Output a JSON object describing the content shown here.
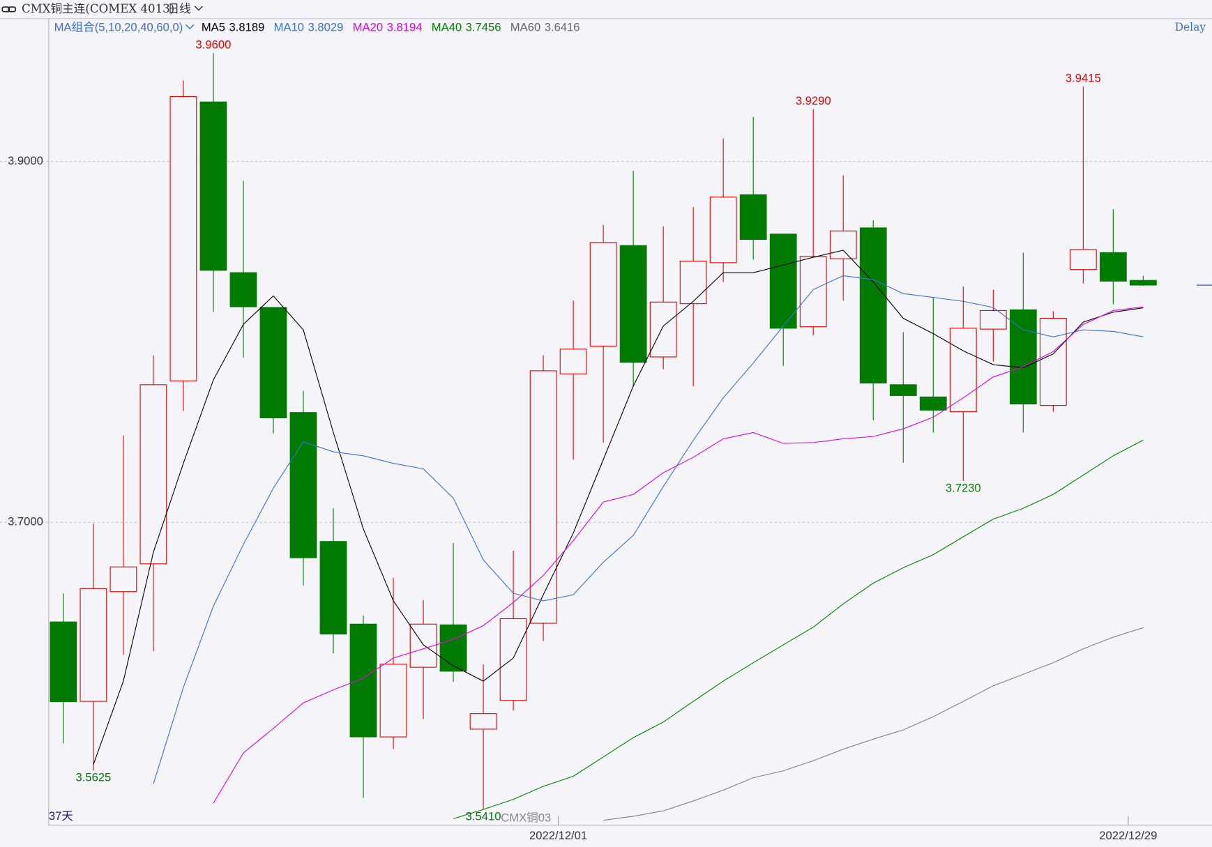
{
  "header": {
    "title": "CMX铜主连(COMEX 4013)",
    "period": "日线",
    "status": "Delay"
  },
  "chart_data": {
    "type": "candlestick",
    "ma_group_label": "MA组合(5,10,20,40,60,0)",
    "count_label": "37天",
    "watermark": "CMX铜03",
    "up_color": "#e60000",
    "down_color": "#007a00",
    "categories": [
      null,
      null,
      null,
      null,
      null,
      null,
      null,
      null,
      null,
      null,
      null,
      null,
      null,
      null,
      null,
      null,
      null,
      "2022/12/01",
      null,
      null,
      null,
      null,
      null,
      null,
      null,
      null,
      null,
      null,
      null,
      null,
      null,
      null,
      null,
      null,
      null,
      null,
      "2022/12/29"
    ],
    "open": [
      3.6448,
      3.6008,
      3.6616,
      3.677,
      3.7784,
      3.933,
      3.8384,
      3.8191,
      3.7609,
      3.6894,
      3.6436,
      3.5811,
      3.6197,
      3.6432,
      3.5854,
      3.6013,
      3.6441,
      3.7823,
      3.7977,
      3.8534,
      3.7917,
      3.8212,
      3.8439,
      3.8816,
      3.8598,
      3.8084,
      3.8461,
      3.8632,
      3.7763,
      3.7695,
      3.7613,
      3.8071,
      3.8178,
      3.7648,
      3.8401,
      3.8495,
      3.8341
    ],
    "high": [
      3.6606,
      3.6993,
      3.7481,
      3.7926,
      3.9449,
      3.96,
      3.8893,
      3.8191,
      3.7729,
      3.7078,
      3.6483,
      3.6693,
      3.6569,
      3.6886,
      3.6214,
      3.6843,
      3.7926,
      3.823,
      3.8649,
      3.8949,
      3.864,
      3.8747,
      3.9128,
      3.9248,
      3.8598,
      3.929,
      3.8923,
      3.8675,
      3.8054,
      3.8247,
      3.8307,
      3.829,
      3.8495,
      3.817,
      3.9415,
      3.8735,
      3.8367
    ],
    "low": [
      3.5775,
      3.5625,
      3.6265,
      3.6287,
      3.7618,
      3.8165,
      3.7913,
      3.7493,
      3.665,
      3.6274,
      3.5473,
      3.5743,
      3.591,
      3.6115,
      3.541,
      3.5957,
      3.6342,
      3.7348,
      3.7442,
      3.7754,
      3.7849,
      3.7754,
      3.8332,
      3.8456,
      3.7866,
      3.8037,
      3.823,
      3.7566,
      3.7331,
      3.7498,
      3.723,
      3.7891,
      3.7498,
      3.7613,
      3.8324,
      3.8208,
      3.8311
    ],
    "close": [
      3.6006,
      3.6633,
      3.6753,
      3.7763,
      3.936,
      3.8397,
      3.8195,
      3.7579,
      3.6804,
      3.6381,
      3.5811,
      3.6214,
      3.6436,
      3.6175,
      3.594,
      3.6466,
      3.784,
      3.796,
      3.8551,
      3.7887,
      3.8221,
      3.8448,
      3.8803,
      3.8568,
      3.8076,
      3.8474,
      3.8615,
      3.7772,
      3.7703,
      3.7622,
      3.8076,
      3.8174,
      3.7656,
      3.8131,
      3.8512,
      3.8337,
      3.8315
    ],
    "series": [
      {
        "name": "MA5",
        "color": "#000000",
        "values": [
          null,
          3.5657,
          3.612,
          3.6834,
          3.7327,
          3.7789,
          3.8097,
          3.8255,
          3.8067,
          3.7498,
          3.6963,
          3.6565,
          3.6321,
          3.6205,
          3.612,
          3.6248,
          3.6599,
          3.6941,
          3.7348,
          3.7755,
          3.8088,
          3.8225,
          3.8384,
          3.8384,
          3.8426,
          3.8469,
          3.8508,
          3.8332,
          3.8131,
          3.8046,
          3.7951,
          3.7874,
          3.7857,
          3.7934,
          3.811,
          3.8165,
          3.8189
        ]
      },
      {
        "name": "MA10",
        "color": "#3a6fd8",
        "values": [
          null,
          null,
          null,
          3.555,
          3.6085,
          3.6535,
          3.6877,
          3.719,
          3.7446,
          3.7391,
          3.7369,
          3.7327,
          3.7297,
          3.7134,
          3.6792,
          3.6607,
          3.6565,
          3.6599,
          3.6779,
          3.6928,
          3.7198,
          3.7455,
          3.769,
          3.7883,
          3.8088,
          3.829,
          3.8367,
          3.8345,
          3.8268,
          3.8247,
          3.8225,
          3.8191,
          3.8067,
          3.8028,
          3.8067,
          3.8058,
          3.8029
        ]
      },
      {
        "name": "MA20",
        "color": "#e600e6",
        "values": [
          null,
          null,
          null,
          null,
          null,
          3.5443,
          3.5722,
          3.5858,
          3.6,
          3.6072,
          3.6137,
          3.6248,
          3.6299,
          3.6351,
          3.6428,
          3.6556,
          3.6706,
          3.6899,
          3.7113,
          3.7155,
          3.7275,
          3.7361,
          3.7463,
          3.7498,
          3.7438,
          3.7442,
          3.7463,
          3.7476,
          3.7519,
          3.7583,
          3.769,
          3.7806,
          3.7862,
          3.7947,
          3.8097,
          3.8174,
          3.8194
        ]
      },
      {
        "name": "MA40",
        "color": "#008000",
        "values": [
          null,
          null,
          null,
          null,
          null,
          null,
          null,
          null,
          null,
          null,
          null,
          null,
          null,
          3.5358,
          3.5409,
          3.5465,
          3.5537,
          3.5593,
          3.57,
          3.5807,
          3.5893,
          3.6008,
          3.612,
          3.6222,
          3.6321,
          3.6419,
          3.6548,
          3.6663,
          3.6749,
          3.6821,
          3.692,
          3.7018,
          3.7078,
          3.7155,
          3.7262,
          3.7369,
          3.7456
        ]
      },
      {
        "name": "MA60",
        "color": "#808080",
        "values": [
          null,
          null,
          null,
          null,
          null,
          null,
          null,
          null,
          null,
          null,
          null,
          null,
          null,
          null,
          null,
          null,
          null,
          null,
          3.5349,
          3.5371,
          3.5401,
          3.5456,
          3.5516,
          3.5585,
          3.5623,
          3.5679,
          3.5743,
          3.5799,
          3.585,
          3.5923,
          3.6008,
          3.6094,
          3.6158,
          3.6222,
          3.6299,
          3.6364,
          3.6416
        ]
      }
    ],
    "annotations": [
      {
        "value": 3.96,
        "label": "3.9600"
      },
      {
        "value": 3.5625,
        "label": "3.5625"
      },
      {
        "value": 3.541,
        "label": "3.5410"
      },
      {
        "value": 3.929,
        "label": "3.9290"
      },
      {
        "value": 3.723,
        "label": "3.7230"
      },
      {
        "value": 3.9415,
        "label": "3.9415"
      }
    ],
    "ylim": [
      3.5321,
      3.9792
    ],
    "yticks": [
      {
        "value": 3.7,
        "label": "3.7000"
      },
      {
        "value": 3.9,
        "label": "3.9000"
      }
    ],
    "grid": true
  }
}
